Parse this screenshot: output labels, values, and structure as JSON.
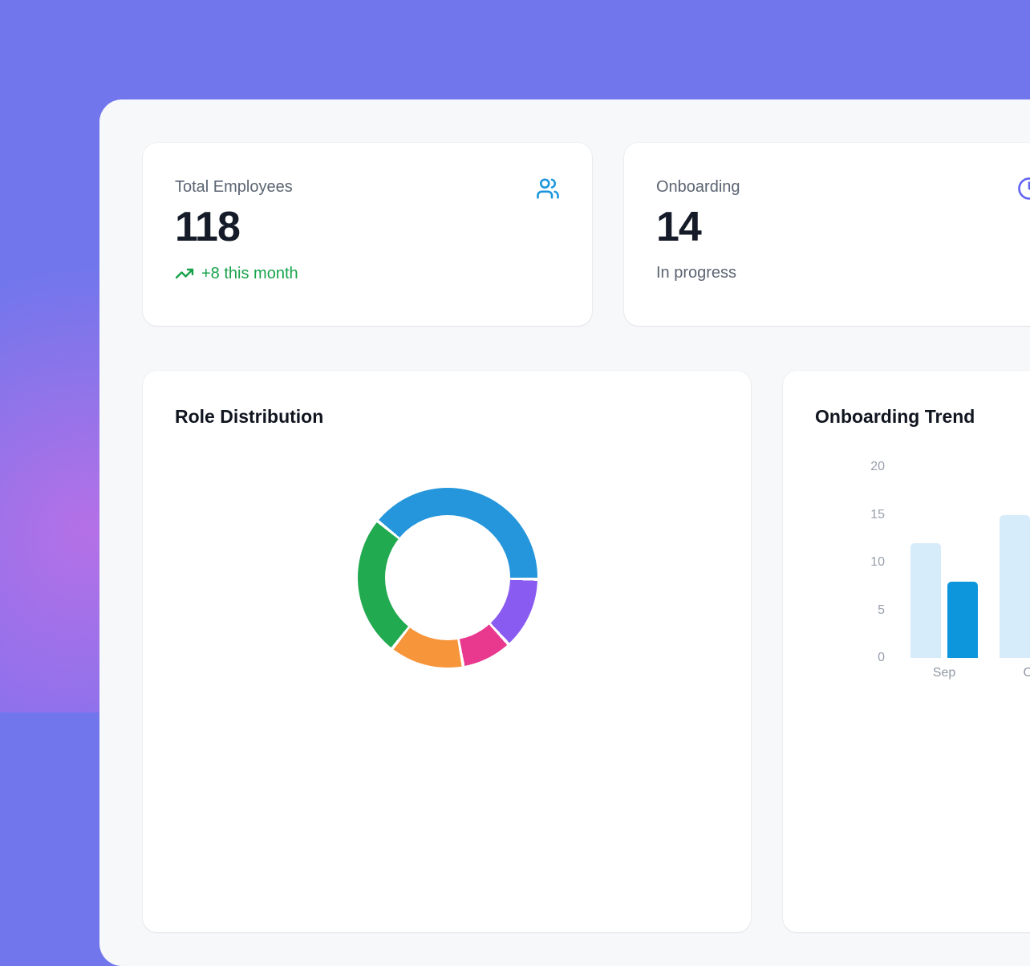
{
  "colors": {
    "background": "#7176ec",
    "background_glow": "#de6ee2",
    "panel": "#f7f8fa",
    "card": "#ffffff",
    "positive_green": "#17a24a",
    "stat_blue": "#1e96dd",
    "stat_indigo": "#6366f1",
    "bar_light_blue": "#d7ecfa",
    "bar_dark_blue": "#0d96dc"
  },
  "stats": [
    {
      "label": "Total Employees",
      "value": "118",
      "delta": "+8 this month",
      "delta_color": "#17a24a",
      "icon": "users-icon",
      "icon_color": "#1e96dd"
    },
    {
      "label": "Onboarding",
      "value": "14",
      "sub": "In progress",
      "icon": "clock-icon",
      "icon_color": "#6366f1"
    }
  ],
  "charts": {
    "role_distribution": {
      "title": "Role Distribution"
    },
    "onboarding_trend": {
      "title": "Onboarding Trend"
    }
  },
  "chart_data": [
    {
      "type": "pie",
      "title": "Role Distribution",
      "donut": true,
      "start_angle_deg": -51,
      "legend": "not visible in screenshot",
      "segments": [
        {
          "label": "blue",
          "color": "#2596db",
          "angle_deg": 142,
          "percent": 39.4
        },
        {
          "label": "purple",
          "color": "#8a5bf0",
          "angle_deg": 46.5,
          "percent": 12.9
        },
        {
          "label": "pink",
          "color": "#e9398e",
          "angle_deg": 32.5,
          "percent": 9.0
        },
        {
          "label": "orange",
          "color": "#f7953b",
          "angle_deg": 48,
          "percent": 13.3
        },
        {
          "label": "green",
          "color": "#21aa50",
          "angle_deg": 91,
          "percent": 25.4
        }
      ]
    },
    {
      "type": "bar",
      "title": "Onboarding Trend",
      "categories": [
        "Sep",
        "Oct"
      ],
      "series": [
        {
          "name": "series-1-light",
          "color": "#d7ecfa",
          "values": [
            12,
            15
          ]
        },
        {
          "name": "series-2-dark",
          "color": "#0d96dc",
          "values": [
            8,
            null
          ]
        }
      ],
      "ylabel": "",
      "xlabel": "",
      "ylim": [
        0,
        20
      ],
      "yticks": [
        0,
        5,
        10,
        15,
        20
      ],
      "grid": false,
      "legend_position": "none visible",
      "note": "second group partially cut off at right edge of viewport"
    }
  ]
}
